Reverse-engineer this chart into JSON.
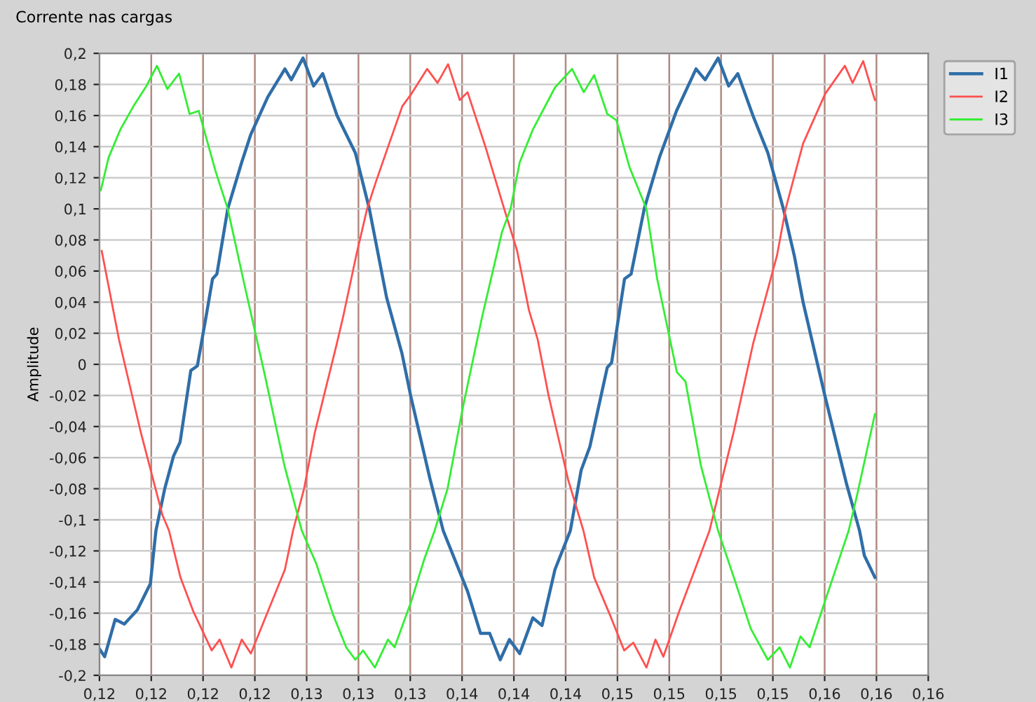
{
  "chart_data": {
    "type": "line",
    "title": "Corrente nas cargas",
    "ylabel": "Amplitude",
    "xlim": [
      0.1155,
      0.1635
    ],
    "xticks": [
      {
        "value": 0.1155,
        "label": "0,12"
      },
      {
        "value": 0.1185,
        "label": "0,12"
      },
      {
        "value": 0.1215,
        "label": "0,12"
      },
      {
        "value": 0.1245,
        "label": "0,12"
      },
      {
        "value": 0.1275,
        "label": "0,13"
      },
      {
        "value": 0.1305,
        "label": "0,13"
      },
      {
        "value": 0.1335,
        "label": "0,13"
      },
      {
        "value": 0.1365,
        "label": "0,14"
      },
      {
        "value": 0.1395,
        "label": "0,14"
      },
      {
        "value": 0.1425,
        "label": "0,14"
      },
      {
        "value": 0.1455,
        "label": "0,15"
      },
      {
        "value": 0.1485,
        "label": "0,15"
      },
      {
        "value": 0.1515,
        "label": "0,15"
      },
      {
        "value": 0.1545,
        "label": "0,15"
      },
      {
        "value": 0.1575,
        "label": "0,16"
      },
      {
        "value": 0.1605,
        "label": "0,16"
      },
      {
        "value": 0.1635,
        "label": "0,16"
      }
    ],
    "ylim": [
      -0.2,
      0.2
    ],
    "yticks": [
      {
        "value": -0.2,
        "label": "-0,2"
      },
      {
        "value": -0.18,
        "label": "-0,18"
      },
      {
        "value": -0.16,
        "label": "-0,16"
      },
      {
        "value": -0.14,
        "label": "-0,14"
      },
      {
        "value": -0.12,
        "label": "-0,12"
      },
      {
        "value": -0.1,
        "label": "-0,1"
      },
      {
        "value": -0.08,
        "label": "-0,08"
      },
      {
        "value": -0.06,
        "label": "-0,06"
      },
      {
        "value": -0.04,
        "label": "-0,04"
      },
      {
        "value": -0.02,
        "label": "-0,02"
      },
      0,
      {
        "value": 0.02,
        "label": "0,02"
      },
      {
        "value": 0.04,
        "label": "0,04"
      },
      {
        "value": 0.06,
        "label": "0,06"
      },
      {
        "value": 0.08,
        "label": "0,08"
      },
      {
        "value": 0.1,
        "label": "0,1"
      },
      {
        "value": 0.12,
        "label": "0,12"
      },
      {
        "value": 0.14,
        "label": "0,14"
      },
      {
        "value": 0.16,
        "label": "0,16"
      },
      {
        "value": 0.18,
        "label": "0,18"
      },
      {
        "value": 0.2,
        "label": "0,2"
      }
    ],
    "grid": true,
    "legend": "top right",
    "series": [
      {
        "name": "I1",
        "color": "#2f6ea8",
        "x": [
          0.1155,
          0.1158,
          0.11641,
          0.11694,
          0.11769,
          0.11845,
          0.11877,
          0.11928,
          0.11979,
          0.12017,
          0.12079,
          0.12117,
          0.12168,
          0.12205,
          0.1223,
          0.12293,
          0.12374,
          0.12427,
          0.12525,
          0.12624,
          0.12661,
          0.12729,
          0.1279,
          0.12843,
          0.12926,
          0.13032,
          0.13113,
          0.13213,
          0.13302,
          0.13352,
          0.13465,
          0.13541,
          0.13682,
          0.13757,
          0.1381,
          0.13871,
          0.13924,
          0.13984,
          0.1406,
          0.14113,
          0.14188,
          0.14277,
          0.1434,
          0.1439,
          0.14491,
          0.14516,
          0.14591,
          0.14629,
          0.14705,
          0.14793,
          0.14892,
          0.15005,
          0.15058,
          0.15133,
          0.15194,
          0.15247,
          0.15338,
          0.15421,
          0.15511,
          0.15574,
          0.15625,
          0.15751,
          0.15877,
          0.15952,
          0.1598,
          0.16041
        ],
        "values": [
          -0.183,
          -0.188,
          -0.164,
          -0.167,
          -0.158,
          -0.141,
          -0.107,
          -0.08,
          -0.059,
          -0.05,
          -0.004,
          -0.001,
          0.031,
          0.055,
          0.058,
          0.1,
          0.13,
          0.148,
          0.172,
          0.19,
          0.183,
          0.197,
          0.179,
          0.187,
          0.16,
          0.136,
          0.1,
          0.043,
          0.007,
          -0.02,
          -0.074,
          -0.107,
          -0.146,
          -0.173,
          -0.173,
          -0.19,
          -0.177,
          -0.186,
          -0.163,
          -0.168,
          -0.132,
          -0.107,
          -0.068,
          -0.053,
          -0.002,
          0.001,
          0.055,
          0.058,
          0.1,
          0.133,
          0.163,
          0.19,
          0.183,
          0.197,
          0.179,
          0.187,
          0.159,
          0.136,
          0.1,
          0.07,
          0.04,
          -0.02,
          -0.077,
          -0.107,
          -0.123,
          -0.137
        ]
      },
      {
        "name": "I2",
        "color": "#ff5050",
        "x": [
          0.11563,
          0.11663,
          0.1179,
          0.11915,
          0.11953,
          0.12019,
          0.12094,
          0.122,
          0.12246,
          0.12314,
          0.12374,
          0.12427,
          0.12525,
          0.12624,
          0.12671,
          0.12735,
          0.12797,
          0.12924,
          0.12962,
          0.13037,
          0.131,
          0.13153,
          0.13228,
          0.13304,
          0.13357,
          0.13448,
          0.13508,
          0.13569,
          0.13637,
          0.13682,
          0.13788,
          0.13894,
          0.13969,
          0.14037,
          0.14088,
          0.14151,
          0.14201,
          0.14264,
          0.14353,
          0.14415,
          0.14506,
          0.14589,
          0.14642,
          0.14718,
          0.1477,
          0.14816,
          0.14907,
          0.15083,
          0.15222,
          0.15335,
          0.15474,
          0.15524,
          0.15625,
          0.15753,
          0.15867,
          0.15912,
          0.15973,
          0.16041
        ],
        "values": [
          0.073,
          0.016,
          -0.044,
          -0.097,
          -0.107,
          -0.137,
          -0.159,
          -0.184,
          -0.177,
          -0.195,
          -0.177,
          -0.186,
          -0.159,
          -0.132,
          -0.107,
          -0.08,
          -0.044,
          0.013,
          0.031,
          0.07,
          0.1,
          0.118,
          0.142,
          0.166,
          0.174,
          0.19,
          0.181,
          0.193,
          0.17,
          0.175,
          0.139,
          0.1,
          0.073,
          0.035,
          0.016,
          -0.02,
          -0.044,
          -0.074,
          -0.107,
          -0.137,
          -0.161,
          -0.184,
          -0.179,
          -0.195,
          -0.177,
          -0.188,
          -0.159,
          -0.107,
          -0.044,
          0.013,
          0.07,
          0.1,
          0.142,
          0.174,
          0.192,
          0.181,
          0.195,
          0.17
        ]
      },
      {
        "name": "I3",
        "color": "#33ee33",
        "x": [
          0.11558,
          0.11603,
          0.11671,
          0.11747,
          0.11822,
          0.11883,
          0.11943,
          0.12011,
          0.12072,
          0.12125,
          0.12223,
          0.12293,
          0.12382,
          0.12508,
          0.12621,
          0.12722,
          0.12805,
          0.12903,
          0.12979,
          0.13032,
          0.13077,
          0.13145,
          0.13221,
          0.13259,
          0.13357,
          0.13432,
          0.13491,
          0.13566,
          0.13654,
          0.13767,
          0.13881,
          0.13931,
          0.13984,
          0.1406,
          0.14188,
          0.14287,
          0.14355,
          0.14415,
          0.14491,
          0.14544,
          0.14619,
          0.14718,
          0.1478,
          0.14894,
          0.14944,
          0.15033,
          0.15133,
          0.15224,
          0.15322,
          0.15421,
          0.15489,
          0.15549,
          0.1561,
          0.15663,
          0.15753,
          0.15889,
          0.1594,
          0.16041
        ],
        "values": [
          0.112,
          0.133,
          0.151,
          0.166,
          0.179,
          0.192,
          0.177,
          0.187,
          0.161,
          0.163,
          0.124,
          0.1,
          0.055,
          -0.007,
          -0.065,
          -0.107,
          -0.128,
          -0.161,
          -0.182,
          -0.19,
          -0.184,
          -0.195,
          -0.177,
          -0.182,
          -0.152,
          -0.125,
          -0.107,
          -0.08,
          -0.028,
          0.031,
          0.085,
          0.1,
          0.13,
          0.151,
          0.178,
          0.19,
          0.175,
          0.186,
          0.161,
          0.157,
          0.127,
          0.1,
          0.055,
          -0.005,
          -0.011,
          -0.065,
          -0.107,
          -0.137,
          -0.17,
          -0.19,
          -0.182,
          -0.195,
          -0.175,
          -0.182,
          -0.152,
          -0.107,
          -0.083,
          -0.032
        ]
      }
    ]
  }
}
